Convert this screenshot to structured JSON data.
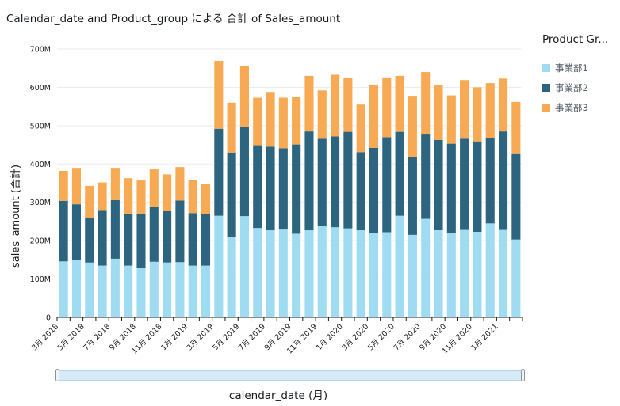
{
  "chart_data": {
    "type": "bar",
    "stacked": true,
    "title": "Calendar_date and Product_group による 合計 of Sales_amount",
    "xlabel": "calendar_date (月)",
    "ylabel": "sales_amount (合計)",
    "ylim": [
      0,
      700
    ],
    "yticks": [
      0,
      100,
      200,
      300,
      400,
      500,
      600,
      700
    ],
    "ytick_labels": [
      "0",
      "100M",
      "200M",
      "300M",
      "400M",
      "500M",
      "600M",
      "700M"
    ],
    "unit": "M",
    "grid": true,
    "legend_position": "right",
    "x_tick_labels": [
      "3月 2018",
      "5月 2018",
      "7月 2018",
      "9月 2018",
      "11月 2018",
      "1月 2019",
      "3月 2019",
      "5月 2019",
      "7月 2019",
      "9月 2019",
      "11月 2019",
      "1月 2020",
      "3月 2020",
      "5月 2020",
      "7月 2020",
      "9月 2020",
      "11月 2020",
      "1月 2021"
    ],
    "categories": [
      "2018-03",
      "2018-04",
      "2018-05",
      "2018-06",
      "2018-07",
      "2018-08",
      "2018-09",
      "2018-10",
      "2018-11",
      "2018-12",
      "2019-01",
      "2019-02",
      "2019-03",
      "2019-04",
      "2019-05",
      "2019-06",
      "2019-07",
      "2019-08",
      "2019-09",
      "2019-10",
      "2019-11",
      "2019-12",
      "2020-01",
      "2020-02",
      "2020-03",
      "2020-04",
      "2020-05",
      "2020-06",
      "2020-07",
      "2020-08",
      "2020-09",
      "2020-10",
      "2020-11",
      "2020-12",
      "2021-01",
      "2021-02"
    ],
    "series": [
      {
        "name": "事業部1",
        "color": "#a0dcf1",
        "values": [
          146,
          149,
          143,
          135,
          153,
          135,
          130,
          145,
          143,
          144,
          135,
          135,
          265,
          210,
          264,
          233,
          227,
          231,
          218,
          227,
          238,
          235,
          232,
          227,
          219,
          222,
          265,
          215,
          257,
          228,
          220,
          230,
          223,
          245,
          230,
          203
        ]
      },
      {
        "name": "事業部2",
        "color": "#2d6580",
        "values": [
          158,
          146,
          117,
          145,
          153,
          135,
          140,
          143,
          134,
          161,
          137,
          134,
          227,
          220,
          232,
          216,
          218,
          210,
          233,
          258,
          228,
          237,
          252,
          204,
          223,
          248,
          219,
          204,
          222,
          235,
          233,
          236,
          236,
          222,
          255,
          225
        ]
      },
      {
        "name": "事業部3",
        "color": "#f7a953",
        "values": [
          78,
          95,
          83,
          72,
          84,
          93,
          87,
          100,
          96,
          87,
          86,
          79,
          177,
          130,
          159,
          124,
          143,
          132,
          124,
          145,
          126,
          161,
          140,
          124,
          163,
          156,
          146,
          159,
          161,
          142,
          126,
          153,
          141,
          144,
          138,
          134
        ]
      }
    ]
  },
  "legend": {
    "title": "Product Gr...",
    "items": [
      {
        "label": "事業部1",
        "color": "#a0dcf1"
      },
      {
        "label": "事業部2",
        "color": "#2d6580"
      },
      {
        "label": "事業部3",
        "color": "#f7a953"
      }
    ]
  }
}
